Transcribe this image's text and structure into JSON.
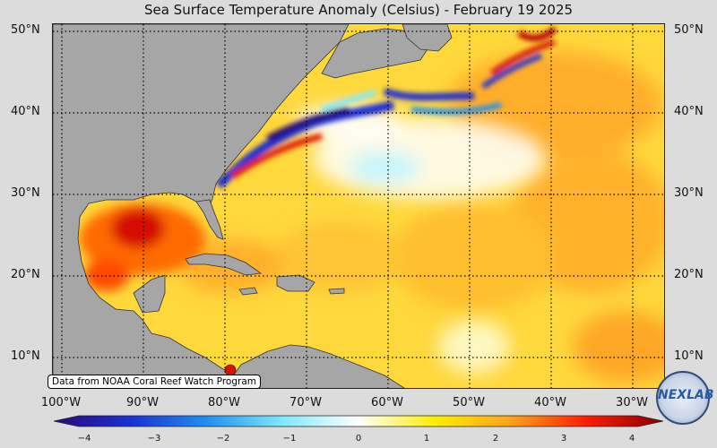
{
  "title": "Sea Surface Temperature Anomaly (Celsius) - February 19 2025",
  "credit": "Data from NOAA Coral Reef Watch Program",
  "logo_text": "NEXLAB",
  "lat_labels": [
    "50°N",
    "40°N",
    "30°N",
    "20°N",
    "10°N"
  ],
  "lon_labels": [
    "100°W",
    "90°W",
    "80°W",
    "70°W",
    "60°W",
    "50°W",
    "40°W",
    "30°W"
  ],
  "colorbar": {
    "min": -4,
    "max": 4,
    "ticks": [
      "−4",
      "−3",
      "−2",
      "−1",
      "0",
      "1",
      "2",
      "3",
      "4"
    ],
    "stops": [
      "#2a0a7a",
      "#1a2fd6",
      "#1f8ff0",
      "#7fe8ff",
      "#ffffff",
      "#ffee00",
      "#ffa31a",
      "#ff1a00",
      "#8a0000"
    ]
  },
  "colors": {
    "land": "#a6a6a6",
    "ocean_base": "#ffd23a"
  }
}
